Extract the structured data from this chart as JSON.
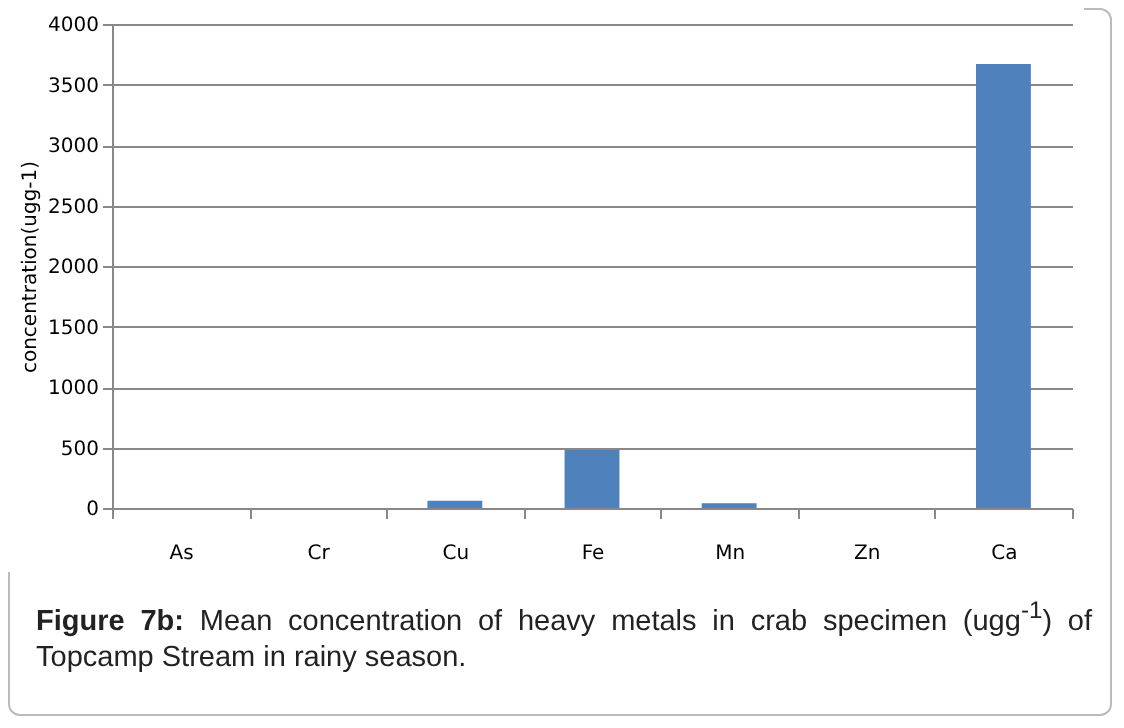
{
  "chart_data": {
    "type": "bar",
    "ylabel": "concentration(ugg-1)",
    "categories": [
      "As",
      "Cr",
      "Cu",
      "Fe",
      "Mn",
      "Zn",
      "Ca"
    ],
    "values": [
      0,
      0,
      60,
      480,
      40,
      0,
      3670
    ],
    "color": "#4f81bd",
    "ylim": [
      0,
      4000
    ],
    "yticks": [
      0,
      500,
      1000,
      1500,
      2000,
      2500,
      3000,
      3500,
      4000
    ],
    "grid": "y",
    "annotations": [
      "Figure 7b: Mean concentration of heavy metals in crab specimen (ugg$^{-1}$) of Topcamp Stream in rainy season."
    ]
  }
}
